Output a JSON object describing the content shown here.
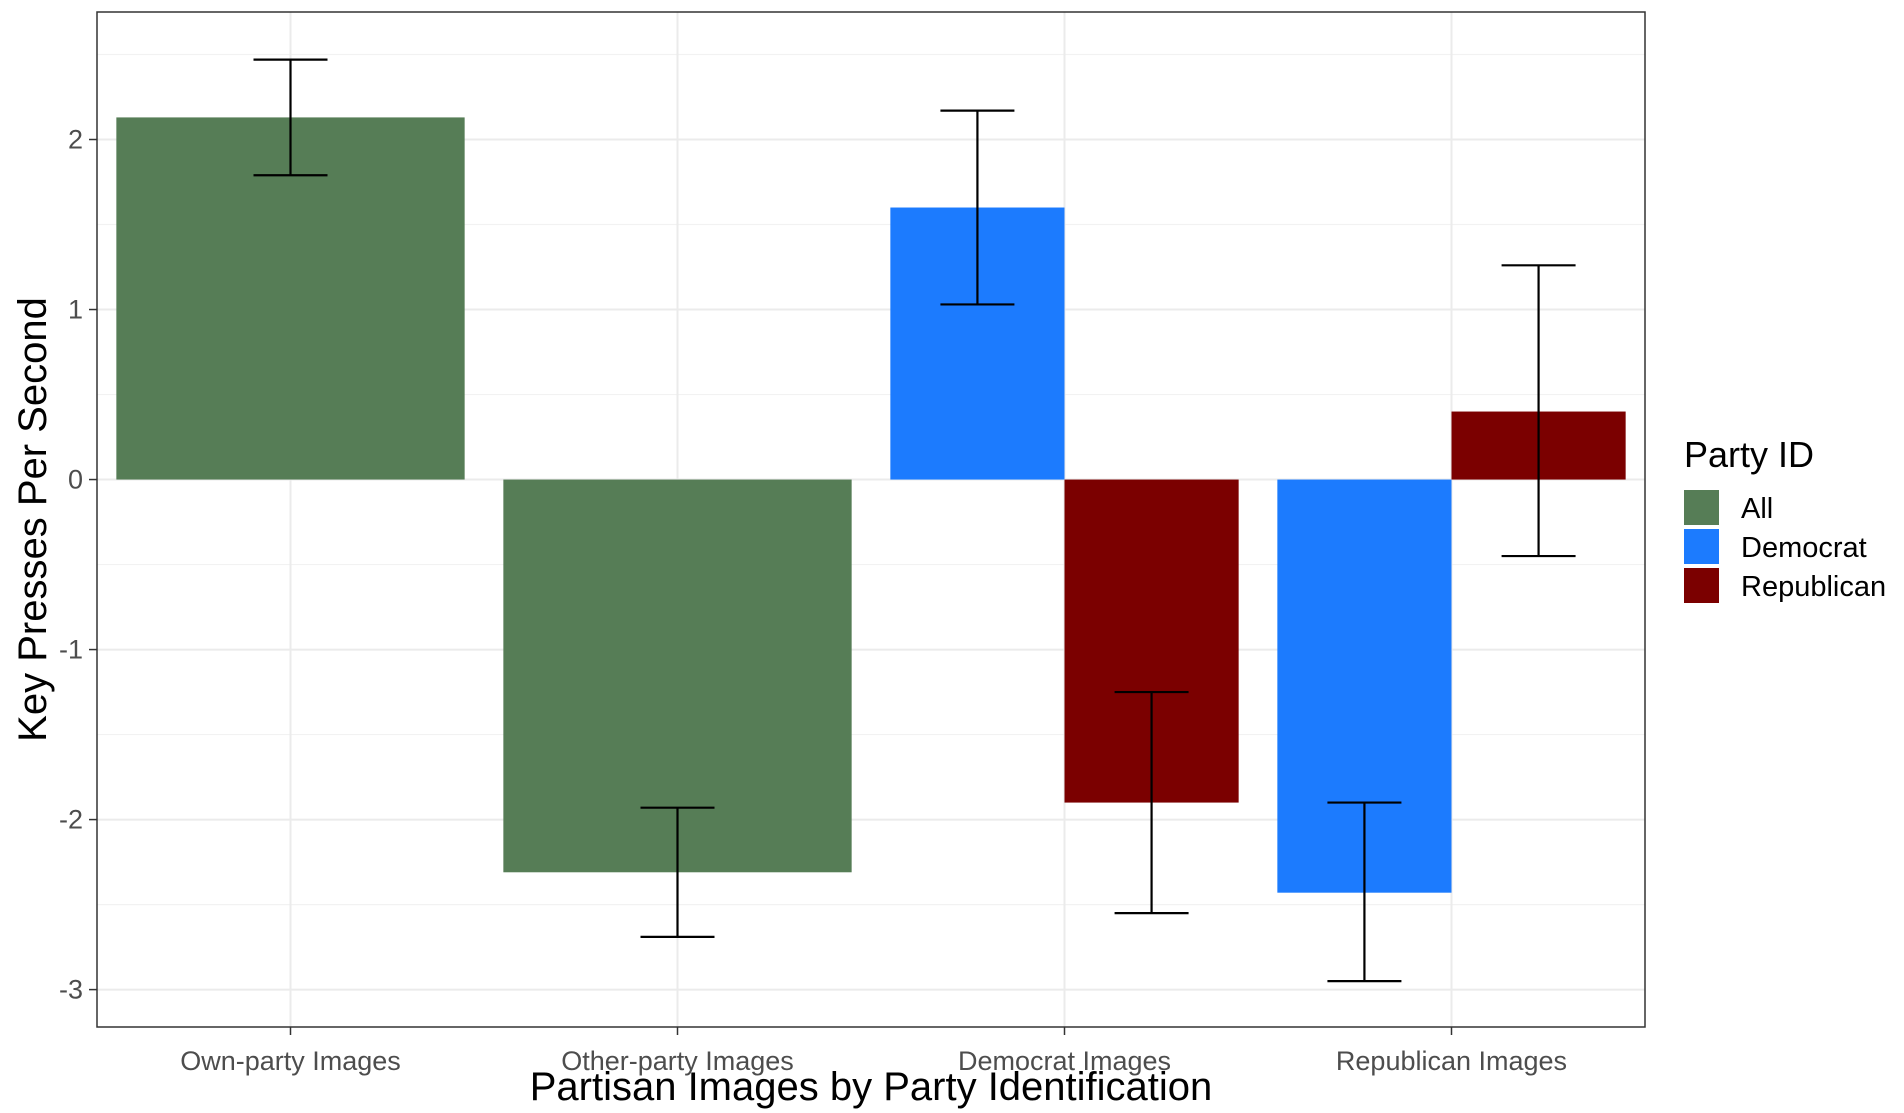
{
  "colors": {
    "All": "#567d56",
    "Democrat": "#1c7bfe",
    "Republican": "#7b0000"
  },
  "chart_data": {
    "type": "bar",
    "xlabel": "Partisan Images by Party Identification",
    "ylabel": "Key Presses Per Second",
    "ylim": [
      -3.22,
      2.75
    ],
    "yticks": [
      -3,
      -2,
      -1,
      0,
      1,
      2
    ],
    "ytick_labels": [
      "-3",
      "-2",
      "-1",
      "0",
      "1",
      "2"
    ],
    "grid": true,
    "legend": {
      "title": "Party ID",
      "position": "right",
      "entries": [
        "All",
        "Democrat",
        "Republican"
      ]
    },
    "categories": [
      "Own-party Images",
      "Other-party Images",
      "Democrat Images",
      "Republican Images"
    ],
    "series": [
      {
        "name": "All",
        "values": [
          2.13,
          -2.31,
          null,
          null
        ],
        "ci_low": [
          1.79,
          -2.69,
          null,
          null
        ],
        "ci_high": [
          2.47,
          -1.93,
          null,
          null
        ]
      },
      {
        "name": "Democrat",
        "values": [
          null,
          null,
          1.6,
          -2.43
        ],
        "ci_low": [
          null,
          null,
          1.03,
          -2.95
        ],
        "ci_high": [
          null,
          null,
          2.17,
          -1.9
        ]
      },
      {
        "name": "Republican",
        "values": [
          null,
          null,
          -1.9,
          0.4
        ],
        "ci_low": [
          null,
          null,
          -2.55,
          -0.45
        ],
        "ci_high": [
          null,
          null,
          -1.25,
          1.26
        ]
      }
    ]
  }
}
